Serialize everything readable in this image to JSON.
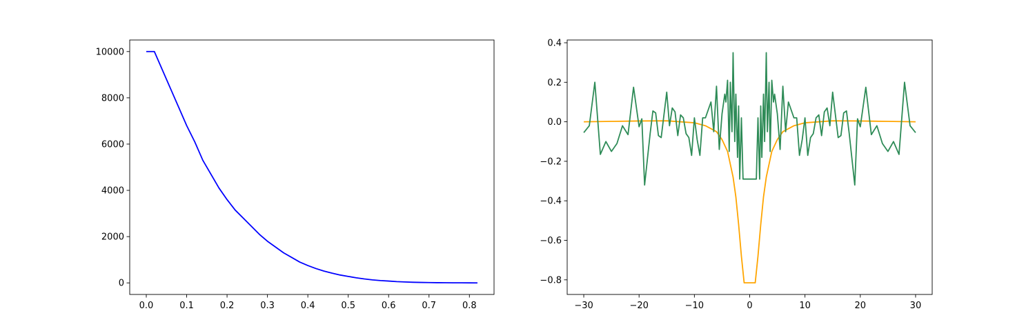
{
  "chart_data": [
    {
      "type": "line",
      "xlim": [
        -0.041,
        0.861
      ],
      "ylim": [
        -500,
        10500
      ],
      "xticks": [
        {
          "value": 0.0,
          "label": "0.0"
        },
        {
          "value": 0.1,
          "label": "0.1"
        },
        {
          "value": 0.2,
          "label": "0.2"
        },
        {
          "value": 0.3,
          "label": "0.3"
        },
        {
          "value": 0.4,
          "label": "0.4"
        },
        {
          "value": 0.5,
          "label": "0.5"
        },
        {
          "value": 0.6,
          "label": "0.6"
        },
        {
          "value": 0.7,
          "label": "0.7"
        },
        {
          "value": 0.8,
          "label": "0.8"
        }
      ],
      "yticks": [
        0,
        2000,
        4000,
        6000,
        8000,
        10000
      ],
      "series": [
        {
          "color": "#0000ff",
          "x": [
            0,
            0.02,
            0.04,
            0.06,
            0.08,
            0.1,
            0.12,
            0.14,
            0.16,
            0.18,
            0.2,
            0.22,
            0.24,
            0.26,
            0.28,
            0.3,
            0.32,
            0.34,
            0.36,
            0.38,
            0.4,
            0.42,
            0.44,
            0.46,
            0.48,
            0.5,
            0.52,
            0.54,
            0.56,
            0.58,
            0.6,
            0.62,
            0.64,
            0.66,
            0.68,
            0.7,
            0.72,
            0.74,
            0.76,
            0.78,
            0.8,
            0.82
          ],
          "values": [
            10000,
            10000,
            9200,
            8400,
            7600,
            6800,
            6100,
            5300,
            4700,
            4100,
            3600,
            3150,
            2800,
            2450,
            2100,
            1800,
            1550,
            1300,
            1100,
            900,
            750,
            620,
            510,
            420,
            340,
            280,
            220,
            170,
            130,
            100,
            80,
            55,
            40,
            28,
            20,
            14,
            9,
            6,
            4,
            2,
            1,
            0
          ]
        }
      ]
    },
    {
      "type": "line",
      "xlim": [
        -33,
        33
      ],
      "ylim": [
        -0.874,
        0.414
      ],
      "xticks": [
        {
          "value": -30,
          "label": "−30"
        },
        {
          "value": -20,
          "label": "−20"
        },
        {
          "value": -10,
          "label": "−10"
        },
        0,
        10,
        20,
        30
      ],
      "yticks": [
        {
          "value": -0.8,
          "label": "−0.8"
        },
        {
          "value": -0.6,
          "label": "−0.6"
        },
        {
          "value": -0.4,
          "label": "−0.4"
        },
        {
          "value": -0.2,
          "label": "−0.2"
        },
        {
          "value": 0.0,
          "label": "0.0"
        },
        {
          "value": 0.2,
          "label": "0.2"
        },
        {
          "value": 0.4,
          "label": "0.4"
        }
      ],
      "series": [
        {
          "color": "#ffa500",
          "x": [
            -30,
            -25,
            -20,
            -15,
            -10,
            -8,
            -6,
            -5,
            -4,
            -3,
            -2.5,
            -2,
            -1.5,
            -1,
            1,
            1.5,
            2,
            2.5,
            3,
            4,
            5,
            6,
            8,
            10,
            15,
            20,
            25,
            30
          ],
          "values": [
            0,
            0.002,
            0.004,
            0.005,
            -0.005,
            -0.02,
            -0.05,
            -0.09,
            -0.15,
            -0.28,
            -0.38,
            -0.52,
            -0.68,
            -0.815,
            -0.815,
            -0.68,
            -0.52,
            -0.38,
            -0.28,
            -0.15,
            -0.09,
            -0.05,
            -0.02,
            -0.005,
            0.005,
            0.004,
            0.002,
            0
          ]
        },
        {
          "color": "#2e8b57",
          "x": [
            -30,
            -29,
            -28,
            -27,
            -26,
            -25,
            -24,
            -23,
            -22,
            -21,
            -20,
            -19.5,
            -19,
            -18,
            -17.5,
            -17,
            -16.5,
            -16,
            -15,
            -14.5,
            -14,
            -13.5,
            -13,
            -12.5,
            -12,
            -11.5,
            -11,
            -10.5,
            -10,
            -9.5,
            -9,
            -8.5,
            -8,
            -7,
            -6.5,
            -6,
            -5.5,
            -5,
            -4.5,
            -4.3,
            -4,
            -3.7,
            -3.5,
            -3.2,
            -3,
            -2.7,
            -2.5,
            -2.2,
            -2,
            -1.8,
            -1.5,
            -1.2,
            1.2,
            1.5,
            1.8,
            2,
            2.2,
            2.5,
            2.7,
            3,
            3.2,
            3.5,
            3.7,
            4,
            4.3,
            4.5,
            5,
            5.5,
            6,
            6.5,
            7,
            8,
            8.5,
            9,
            9.5,
            10,
            10.5,
            11,
            11.5,
            12,
            12.5,
            13,
            13.5,
            14,
            14.5,
            15,
            16,
            16.5,
            17,
            17.5,
            18,
            19,
            19.5,
            20,
            21,
            22,
            23,
            24,
            25,
            26,
            27,
            28,
            29,
            30
          ],
          "values": [
            -0.055,
            -0.02,
            0.2,
            -0.165,
            -0.1,
            -0.15,
            -0.11,
            -0.02,
            -0.065,
            0.175,
            -0.025,
            0.015,
            -0.32,
            -0.06,
            0.055,
            0.045,
            -0.07,
            -0.08,
            0.15,
            -0.02,
            0.07,
            0.05,
            -0.07,
            0.035,
            0.02,
            -0.06,
            -0.08,
            -0.17,
            0.02,
            -0.09,
            -0.17,
            0.02,
            0.02,
            0.1,
            -0.05,
            0.18,
            -0.14,
            0.04,
            0.14,
            0.1,
            0.21,
            -0.15,
            0.2,
            -0.05,
            0.35,
            -0.1,
            0.14,
            -0.18,
            0.08,
            -0.29,
            0.02,
            -0.29,
            -0.29,
            0.02,
            -0.29,
            0.08,
            -0.18,
            0.14,
            -0.1,
            0.35,
            -0.05,
            0.2,
            -0.15,
            0.21,
            0.1,
            0.14,
            0.04,
            -0.14,
            0.18,
            -0.05,
            0.1,
            0.02,
            0.02,
            -0.17,
            -0.09,
            0.02,
            -0.17,
            -0.08,
            -0.06,
            0.02,
            0.035,
            -0.07,
            0.05,
            0.07,
            -0.02,
            0.15,
            -0.08,
            -0.07,
            0.045,
            0.055,
            -0.06,
            -0.32,
            0.015,
            -0.025,
            0.175,
            -0.065,
            -0.02,
            -0.11,
            -0.15,
            -0.1,
            -0.165,
            0.2,
            -0.02,
            -0.055
          ]
        }
      ]
    }
  ]
}
